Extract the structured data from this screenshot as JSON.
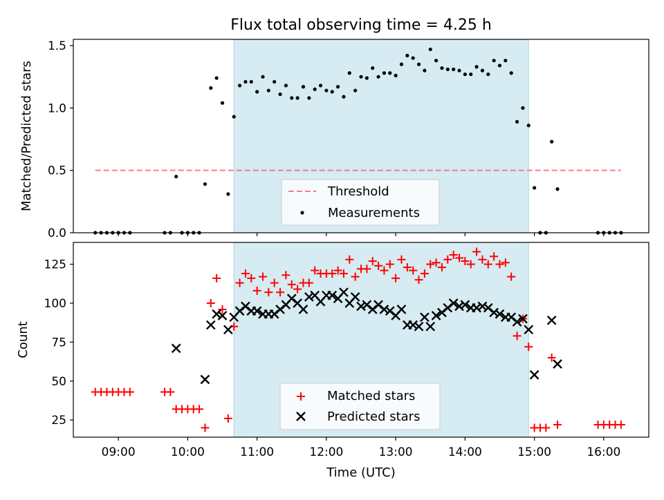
{
  "chart_data": [
    {
      "type": "scatter",
      "title": "Flux total observing time = 4.25 h",
      "xlabel": "",
      "ylabel": "Matched/Predicted stars",
      "xlim": [
        "08:21",
        "16:39"
      ],
      "ylim": [
        0,
        1.55
      ],
      "y_ticks": [
        "0.0",
        "0.5",
        "1.0",
        "1.5"
      ],
      "highlight_span": [
        "10:40",
        "14:55"
      ],
      "threshold": {
        "value": 0.5,
        "x_range": [
          "08:40",
          "16:15"
        ]
      },
      "legend": {
        "position": "lower-center",
        "entries": [
          "Threshold",
          "Measurements"
        ]
      },
      "colors": {
        "threshold": "#f08080",
        "measurements": "#000000",
        "span": "#add8e6"
      },
      "series": [
        {
          "name": "Measurements",
          "points": [
            [
              "08:40",
              0.0
            ],
            [
              "08:45",
              0.0
            ],
            [
              "08:50",
              0.0
            ],
            [
              "08:55",
              0.0
            ],
            [
              "09:00",
              0.0
            ],
            [
              "09:05",
              0.0
            ],
            [
              "09:10",
              0.0
            ],
            [
              "09:40",
              0.0
            ],
            [
              "09:45",
              0.0
            ],
            [
              "09:50",
              0.45
            ],
            [
              "09:55",
              0.0
            ],
            [
              "10:00",
              0.0
            ],
            [
              "10:05",
              0.0
            ],
            [
              "10:10",
              0.0
            ],
            [
              "10:15",
              0.39
            ],
            [
              "10:20",
              1.16
            ],
            [
              "10:25",
              1.24
            ],
            [
              "10:30",
              1.04
            ],
            [
              "10:35",
              0.31
            ],
            [
              "10:40",
              0.93
            ],
            [
              "10:45",
              1.18
            ],
            [
              "10:50",
              1.21
            ],
            [
              "10:55",
              1.21
            ],
            [
              "11:00",
              1.13
            ],
            [
              "11:05",
              1.25
            ],
            [
              "11:10",
              1.14
            ],
            [
              "11:15",
              1.21
            ],
            [
              "11:20",
              1.11
            ],
            [
              "11:25",
              1.18
            ],
            [
              "11:30",
              1.08
            ],
            [
              "11:35",
              1.08
            ],
            [
              "11:40",
              1.17
            ],
            [
              "11:45",
              1.08
            ],
            [
              "11:50",
              1.15
            ],
            [
              "11:55",
              1.18
            ],
            [
              "12:00",
              1.14
            ],
            [
              "12:05",
              1.13
            ],
            [
              "12:10",
              1.17
            ],
            [
              "12:15",
              1.09
            ],
            [
              "12:20",
              1.28
            ],
            [
              "12:25",
              1.14
            ],
            [
              "12:30",
              1.25
            ],
            [
              "12:35",
              1.24
            ],
            [
              "12:40",
              1.32
            ],
            [
              "12:45",
              1.25
            ],
            [
              "12:50",
              1.28
            ],
            [
              "12:55",
              1.28
            ],
            [
              "13:00",
              1.26
            ],
            [
              "13:05",
              1.35
            ],
            [
              "13:10",
              1.42
            ],
            [
              "13:15",
              1.4
            ],
            [
              "13:20",
              1.35
            ],
            [
              "13:25",
              1.3
            ],
            [
              "13:30",
              1.47
            ],
            [
              "13:35",
              1.38
            ],
            [
              "13:40",
              1.32
            ],
            [
              "13:45",
              1.31
            ],
            [
              "13:50",
              1.31
            ],
            [
              "13:55",
              1.3
            ],
            [
              "14:00",
              1.27
            ],
            [
              "14:05",
              1.27
            ],
            [
              "14:10",
              1.33
            ],
            [
              "14:15",
              1.3
            ],
            [
              "14:20",
              1.27
            ],
            [
              "14:25",
              1.38
            ],
            [
              "14:30",
              1.34
            ],
            [
              "14:35",
              1.38
            ],
            [
              "14:40",
              1.28
            ],
            [
              "14:45",
              0.89
            ],
            [
              "14:50",
              1.0
            ],
            [
              "14:55",
              0.86
            ],
            [
              "15:00",
              0.36
            ],
            [
              "15:05",
              0.0
            ],
            [
              "15:10",
              0.0
            ],
            [
              "15:15",
              0.73
            ],
            [
              "15:20",
              0.35
            ],
            [
              "15:55",
              0.0
            ],
            [
              "16:00",
              0.0
            ],
            [
              "16:05",
              0.0
            ],
            [
              "16:10",
              0.0
            ],
            [
              "16:15",
              0.0
            ]
          ]
        },
        {
          "name": "Threshold",
          "value": 0.5
        }
      ]
    },
    {
      "type": "scatter",
      "title": "",
      "xlabel": "Time (UTC)",
      "ylabel": "Count",
      "xlim": [
        "08:21",
        "16:39"
      ],
      "ylim": [
        14,
        139
      ],
      "y_ticks": [
        "25",
        "50",
        "75",
        "100",
        "125"
      ],
      "x_ticks": [
        "09:00",
        "10:00",
        "11:00",
        "12:00",
        "13:00",
        "14:00",
        "15:00",
        "16:00"
      ],
      "highlight_span": [
        "10:40",
        "14:55"
      ],
      "legend": {
        "position": "lower-center",
        "entries": [
          "Matched stars",
          "Predicted stars"
        ]
      },
      "colors": {
        "matched": "#ff0000",
        "predicted": "#000000",
        "span": "#add8e6"
      },
      "series": [
        {
          "name": "Matched stars",
          "points": [
            [
              "08:40",
              43
            ],
            [
              "08:45",
              43
            ],
            [
              "08:50",
              43
            ],
            [
              "08:55",
              43
            ],
            [
              "09:00",
              43
            ],
            [
              "09:05",
              43
            ],
            [
              "09:10",
              43
            ],
            [
              "09:40",
              43
            ],
            [
              "09:45",
              43
            ],
            [
              "09:50",
              32
            ],
            [
              "09:55",
              32
            ],
            [
              "10:00",
              32
            ],
            [
              "10:05",
              32
            ],
            [
              "10:10",
              32
            ],
            [
              "10:15",
              20
            ],
            [
              "10:20",
              100
            ],
            [
              "10:25",
              116
            ],
            [
              "10:30",
              96
            ],
            [
              "10:35",
              26
            ],
            [
              "10:40",
              85
            ],
            [
              "10:45",
              113
            ],
            [
              "10:50",
              119
            ],
            [
              "10:55",
              116
            ],
            [
              "11:00",
              108
            ],
            [
              "11:05",
              117
            ],
            [
              "11:10",
              107
            ],
            [
              "11:15",
              113
            ],
            [
              "11:20",
              107
            ],
            [
              "11:25",
              118
            ],
            [
              "11:30",
              112
            ],
            [
              "11:35",
              109
            ],
            [
              "11:40",
              113
            ],
            [
              "11:45",
              113
            ],
            [
              "11:50",
              121
            ],
            [
              "11:55",
              119
            ],
            [
              "12:00",
              119
            ],
            [
              "12:05",
              119
            ],
            [
              "12:10",
              121
            ],
            [
              "12:15",
              119
            ],
            [
              "12:20",
              128
            ],
            [
              "12:25",
              117
            ],
            [
              "12:30",
              122
            ],
            [
              "12:35",
              122
            ],
            [
              "12:40",
              127
            ],
            [
              "12:45",
              124
            ],
            [
              "12:50",
              121
            ],
            [
              "12:55",
              125
            ],
            [
              "13:00",
              116
            ],
            [
              "13:05",
              128
            ],
            [
              "13:10",
              123
            ],
            [
              "13:15",
              121
            ],
            [
              "13:20",
              115
            ],
            [
              "13:25",
              119
            ],
            [
              "13:30",
              125
            ],
            [
              "13:35",
              126
            ],
            [
              "13:40",
              123
            ],
            [
              "13:45",
              128
            ],
            [
              "13:50",
              131
            ],
            [
              "13:55",
              129
            ],
            [
              "14:00",
              127
            ],
            [
              "14:05",
              125
            ],
            [
              "14:10",
              133
            ],
            [
              "14:15",
              128
            ],
            [
              "14:20",
              125
            ],
            [
              "14:25",
              130
            ],
            [
              "14:30",
              125
            ],
            [
              "14:35",
              126
            ],
            [
              "14:40",
              117
            ],
            [
              "14:45",
              79
            ],
            [
              "14:50",
              90
            ],
            [
              "14:55",
              72
            ],
            [
              "15:00",
              20
            ],
            [
              "15:05",
              20
            ],
            [
              "15:10",
              20
            ],
            [
              "15:15",
              65
            ],
            [
              "15:20",
              22
            ],
            [
              "15:55",
              22
            ],
            [
              "16:00",
              22
            ],
            [
              "16:05",
              22
            ],
            [
              "16:10",
              22
            ],
            [
              "16:15",
              22
            ]
          ]
        },
        {
          "name": "Predicted stars",
          "points": [
            [
              "09:50",
              71
            ],
            [
              "10:15",
              51
            ],
            [
              "10:20",
              86
            ],
            [
              "10:25",
              93
            ],
            [
              "10:30",
              92
            ],
            [
              "10:35",
              83
            ],
            [
              "10:40",
              91
            ],
            [
              "10:45",
              95
            ],
            [
              "10:50",
              98
            ],
            [
              "10:55",
              95
            ],
            [
              "11:00",
              95
            ],
            [
              "11:05",
              93
            ],
            [
              "11:10",
              93
            ],
            [
              "11:15",
              93
            ],
            [
              "11:20",
              96
            ],
            [
              "11:25",
              99
            ],
            [
              "11:30",
              103
            ],
            [
              "11:35",
              100
            ],
            [
              "11:40",
              96
            ],
            [
              "11:45",
              104
            ],
            [
              "11:50",
              105
            ],
            [
              "11:55",
              101
            ],
            [
              "12:00",
              105
            ],
            [
              "12:05",
              105
            ],
            [
              "12:10",
              103
            ],
            [
              "12:15",
              107
            ],
            [
              "12:20",
              100
            ],
            [
              "12:25",
              104
            ],
            [
              "12:30",
              98
            ],
            [
              "12:35",
              99
            ],
            [
              "12:40",
              96
            ],
            [
              "12:45",
              99
            ],
            [
              "12:50",
              96
            ],
            [
              "12:55",
              95
            ],
            [
              "13:00",
              92
            ],
            [
              "13:05",
              96
            ],
            [
              "13:10",
              86
            ],
            [
              "13:15",
              86
            ],
            [
              "13:20",
              85
            ],
            [
              "13:25",
              91
            ],
            [
              "13:30",
              85
            ],
            [
              "13:35",
              92
            ],
            [
              "13:40",
              94
            ],
            [
              "13:45",
              97
            ],
            [
              "13:50",
              100
            ],
            [
              "13:55",
              98
            ],
            [
              "14:00",
              99
            ],
            [
              "14:05",
              97
            ],
            [
              "14:10",
              97
            ],
            [
              "14:15",
              98
            ],
            [
              "14:20",
              97
            ],
            [
              "14:25",
              94
            ],
            [
              "14:30",
              93
            ],
            [
              "14:35",
              91
            ],
            [
              "14:40",
              91
            ],
            [
              "14:45",
              88
            ],
            [
              "14:50",
              90
            ],
            [
              "14:55",
              83
            ],
            [
              "15:00",
              54
            ],
            [
              "15:15",
              89
            ],
            [
              "15:20",
              61
            ]
          ]
        }
      ]
    }
  ]
}
